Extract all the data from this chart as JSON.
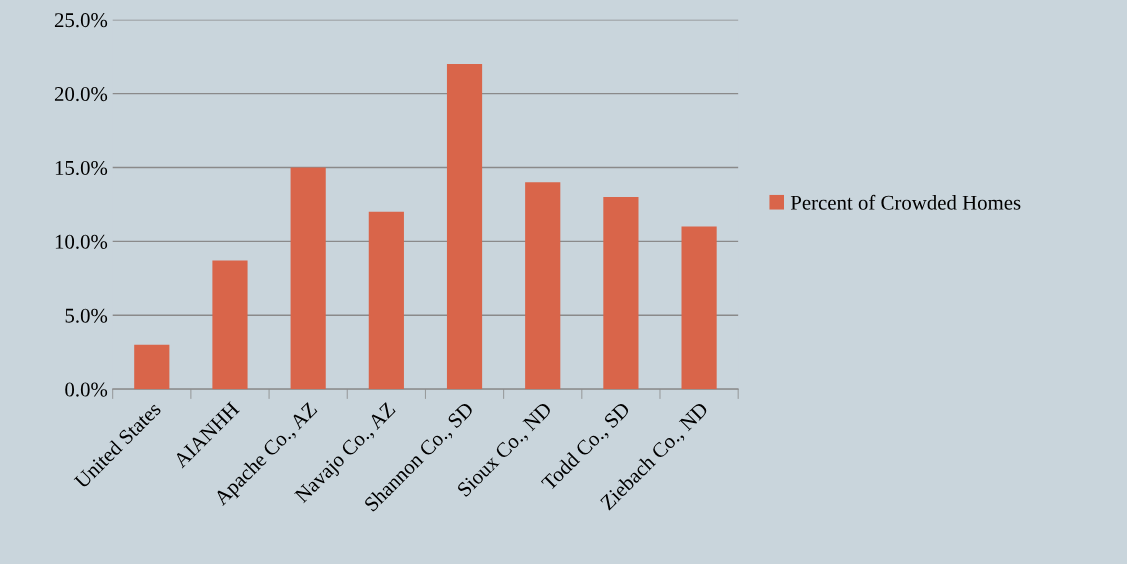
{
  "chart_data": {
    "type": "bar",
    "categories": [
      "United States",
      "AIANHH",
      "Apache Co., AZ",
      "Navajo Co., AZ",
      "Shannon Co., SD",
      "Sioux Co., ND",
      "Todd Co., SD",
      "Ziebach Co., ND"
    ],
    "series": [
      {
        "name": "Percent of Crowded Homes",
        "color": "#d9654a",
        "values": [
          3.0,
          8.7,
          15.0,
          12.0,
          22.0,
          14.0,
          13.0,
          11.0
        ]
      }
    ],
    "ylim": [
      0,
      25
    ],
    "yticks": [
      {
        "value": 0,
        "label": "0.0%"
      },
      {
        "value": 5,
        "label": "5.0%"
      },
      {
        "value": 10,
        "label": "10.0%"
      },
      {
        "value": 15,
        "label": "15.0%"
      },
      {
        "value": 20,
        "label": "20.0%"
      },
      {
        "value": 25,
        "label": "25.0%"
      }
    ],
    "grid": "y",
    "legend": "right"
  }
}
